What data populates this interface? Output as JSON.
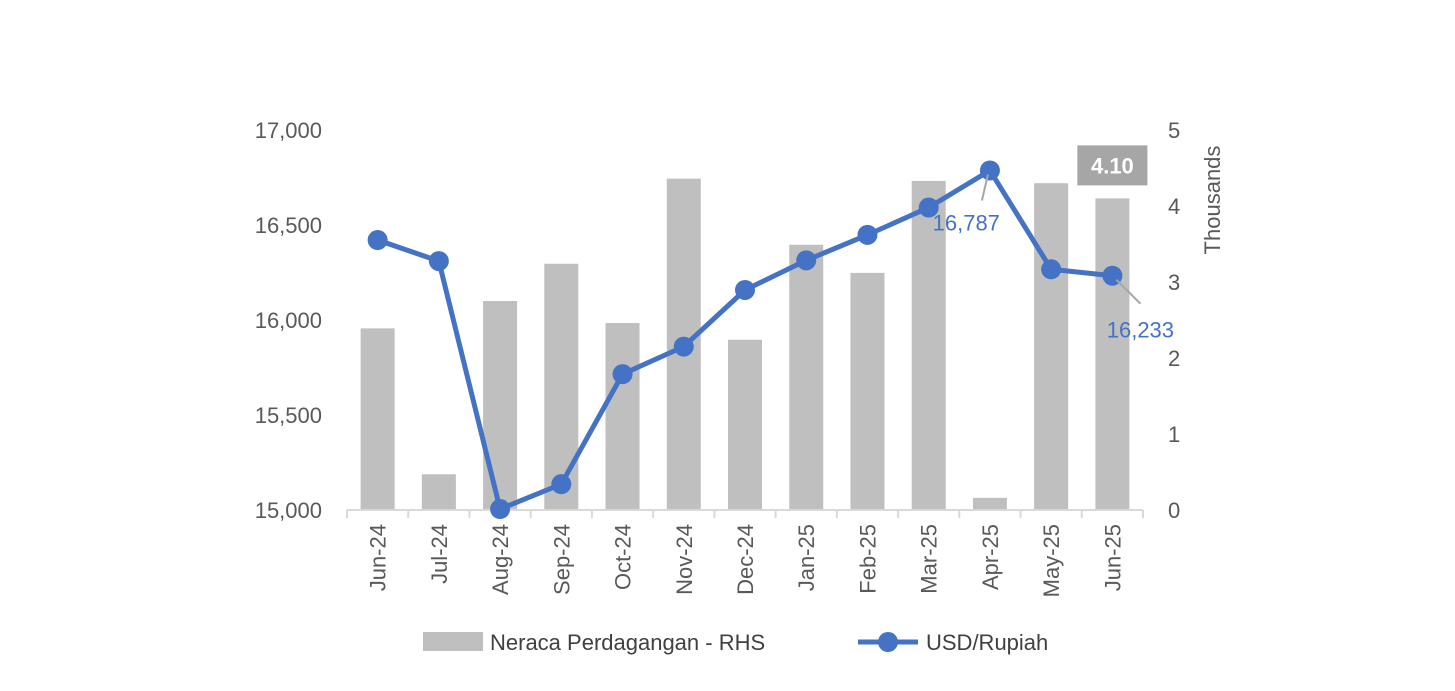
{
  "chart_data": {
    "type": "bar+line",
    "categories": [
      "Jun-24",
      "Jul-24",
      "Aug-24",
      "Sep-24",
      "Oct-24",
      "Nov-24",
      "Dec-24",
      "Jan-25",
      "Feb-25",
      "Mar-25",
      "Apr-25",
      "May-25",
      "Jun-25"
    ],
    "series": [
      {
        "name": "Neraca Perdagangan - RHS",
        "type": "bar",
        "axis": "right",
        "color": "#BFBFBF",
        "values": [
          2.39,
          0.47,
          2.75,
          3.24,
          2.46,
          4.36,
          2.24,
          3.49,
          3.12,
          4.33,
          0.16,
          4.3,
          4.1
        ]
      },
      {
        "name": "USD/Rupiah",
        "type": "line",
        "axis": "left",
        "color": "#4472C4",
        "values": [
          16421,
          16310,
          15005,
          15136,
          15715,
          15860,
          16158,
          16314,
          16448,
          16592,
          16787,
          16267,
          16233
        ]
      }
    ],
    "left_axis": {
      "min": 15000,
      "max": 17000,
      "ticks": [
        "15,000",
        "15,500",
        "16,000",
        "16,500",
        "17,000"
      ]
    },
    "right_axis": {
      "min": 0,
      "max": 5,
      "ticks": [
        "0",
        "1",
        "2",
        "3",
        "4",
        "5"
      ],
      "title": "Thousands"
    },
    "annotations": [
      {
        "series": "USD/Rupiah",
        "index": 10,
        "text": "16,787"
      },
      {
        "series": "USD/Rupiah",
        "index": 12,
        "text": "16,233"
      },
      {
        "series": "Neraca Perdagangan - RHS",
        "index": 12,
        "text": "4.10"
      }
    ],
    "legend": {
      "position": "bottom"
    },
    "grid": false
  }
}
